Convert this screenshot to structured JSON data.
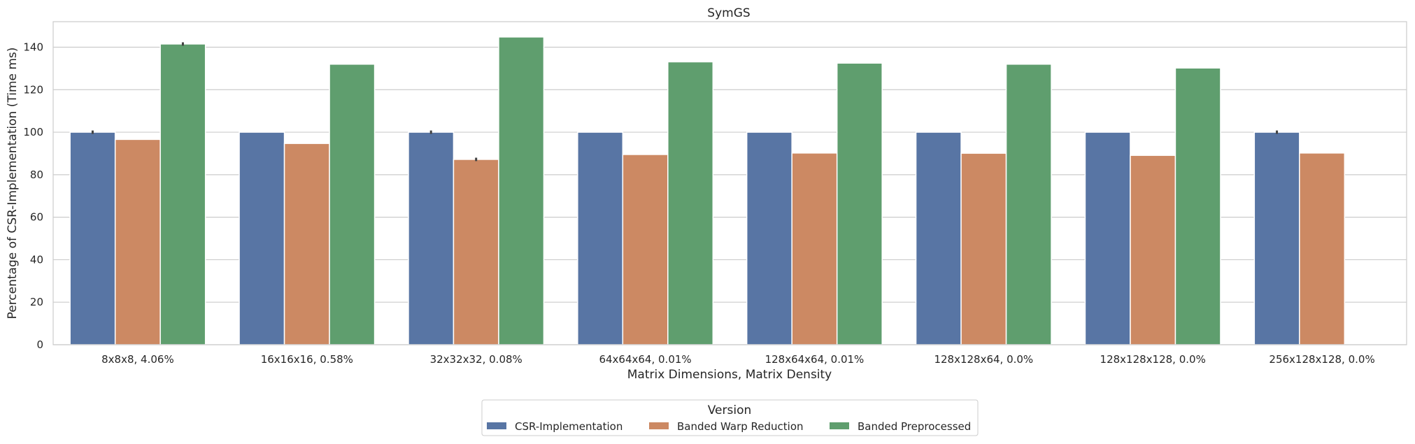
{
  "chart_data": {
    "type": "bar",
    "title": "SymGS",
    "xlabel": "Matrix Dimensions, Matrix Density",
    "ylabel": "Percentage of CSR-Implementation (Time ms)",
    "ylim": [
      0,
      152
    ],
    "yticks": [
      0,
      20,
      40,
      60,
      80,
      100,
      120,
      140
    ],
    "grid": "horizontal",
    "categories": [
      "8x8x8, 4.06%",
      "16x16x16, 0.58%",
      "32x32x32, 0.08%",
      "64x64x64, 0.01%",
      "128x64x64, 0.01%",
      "128x128x64, 0.0%",
      "128x128x128, 0.0%",
      "256x128x128, 0.0%"
    ],
    "series": [
      {
        "name": "CSR-Implementation",
        "color": "#5875a4",
        "values": [
          100,
          100,
          100,
          100,
          100,
          100,
          100,
          100
        ],
        "errors": [
          0.8,
          0,
          0.8,
          0,
          0,
          0,
          0,
          0.8
        ]
      },
      {
        "name": "Banded Warp Reduction",
        "color": "#cc8963",
        "values": [
          96.6,
          94.7,
          87.2,
          89.5,
          90.2,
          90.1,
          89.1,
          90.2
        ],
        "errors": [
          0,
          0,
          0.8,
          0,
          0,
          0,
          0,
          0
        ]
      },
      {
        "name": "Banded Preprocessed",
        "color": "#5f9e6e",
        "values": [
          141.5,
          132.0,
          144.8,
          133.1,
          132.5,
          132.0,
          130.2,
          null
        ],
        "errors": [
          0.8,
          0,
          0,
          0,
          0,
          0,
          0,
          0
        ]
      }
    ],
    "legend": {
      "title": "Version",
      "placement": "bottom-center"
    }
  }
}
